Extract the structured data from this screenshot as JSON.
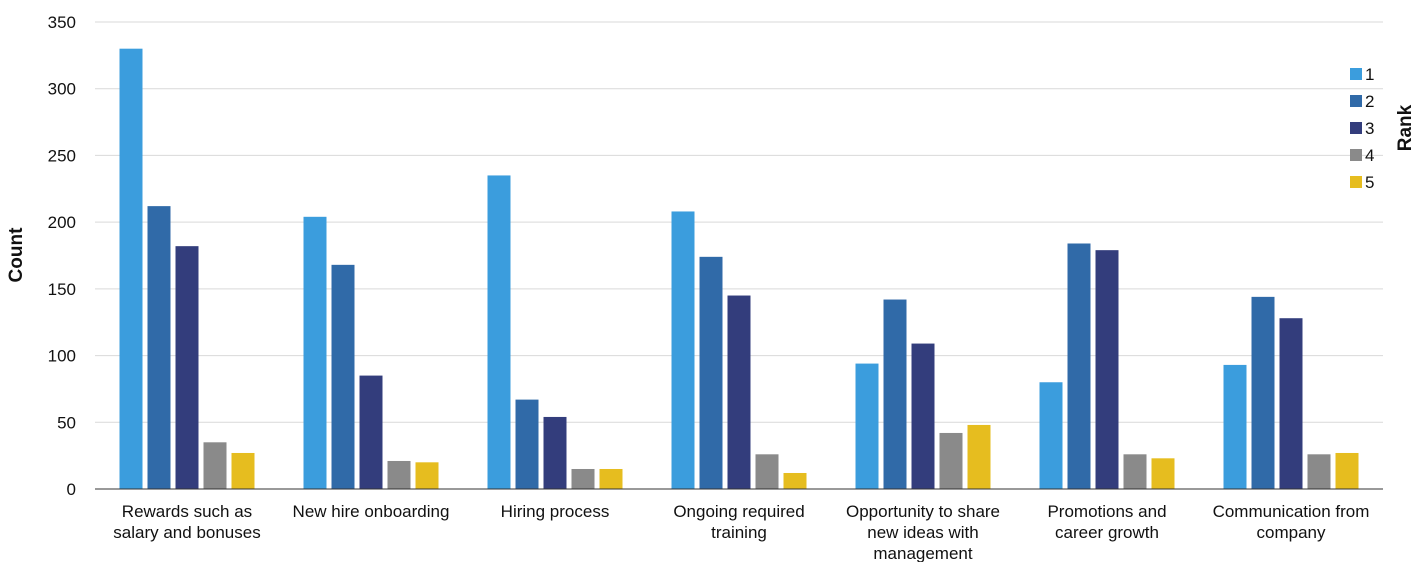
{
  "chart_data": {
    "type": "bar",
    "title": "",
    "xlabel": "",
    "ylabel": "Count",
    "ylim": [
      0,
      350
    ],
    "yticks": [
      0,
      50,
      100,
      150,
      200,
      250,
      300,
      350
    ],
    "grid": true,
    "legend": {
      "title": "Rank",
      "placement": "top-right",
      "entries": [
        "1",
        "2",
        "3",
        "4",
        "5"
      ]
    },
    "categories": [
      [
        "Rewards such as",
        "salary and bonuses"
      ],
      [
        "New hire onboarding"
      ],
      [
        "Hiring process"
      ],
      [
        "Ongoing required",
        "training"
      ],
      [
        "Opportunity to share",
        "new ideas with",
        "management"
      ],
      [
        "Promotions and",
        "career growth"
      ],
      [
        "Communication from",
        "company"
      ]
    ],
    "series": [
      {
        "name": "1",
        "color": "#3b9ddd",
        "values": [
          330,
          204,
          235,
          208,
          94,
          80,
          93
        ]
      },
      {
        "name": "2",
        "color": "#306aa8",
        "values": [
          212,
          168,
          67,
          174,
          142,
          184,
          144
        ]
      },
      {
        "name": "3",
        "color": "#333d7c",
        "values": [
          182,
          85,
          54,
          145,
          109,
          179,
          128
        ]
      },
      {
        "name": "4",
        "color": "#8a8a8a",
        "values": [
          35,
          21,
          15,
          26,
          42,
          26,
          26
        ]
      },
      {
        "name": "5",
        "color": "#e6bd1f",
        "values": [
          27,
          20,
          15,
          12,
          48,
          23,
          27
        ]
      }
    ]
  }
}
